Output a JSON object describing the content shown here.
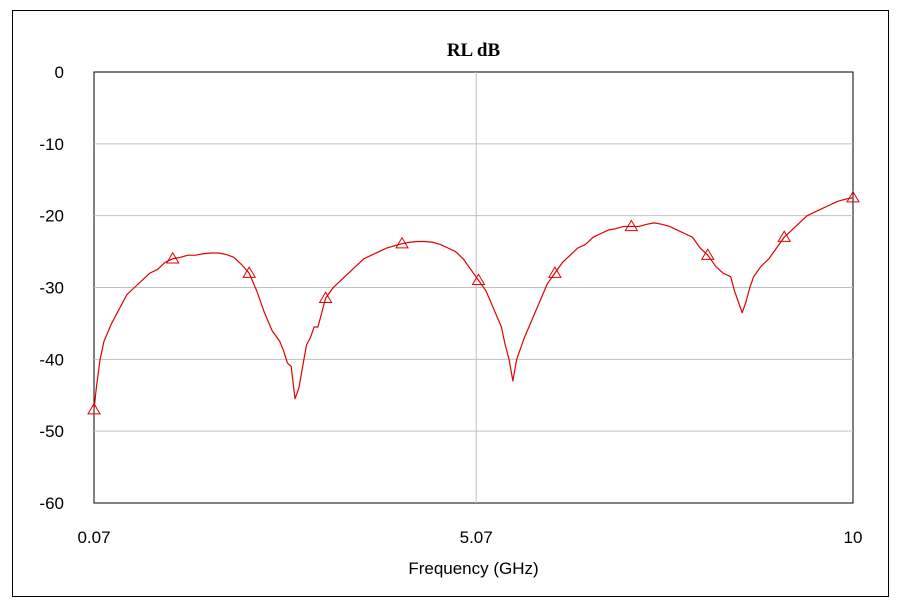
{
  "chart_data": {
    "type": "line",
    "title": "RL dB",
    "xlabel": "Frequency (GHz)",
    "ylabel": "",
    "xlim": [
      0.07,
      10
    ],
    "ylim": [
      -60,
      0
    ],
    "x_ticks": [
      "0.07",
      "5.07",
      "10"
    ],
    "y_ticks": [
      "0",
      "-10",
      "-20",
      "-30",
      "-40",
      "-50",
      "-60"
    ],
    "grid": "horizontal at every y tick; vertical at 5.07",
    "series": [
      {
        "color": "#e00000",
        "marker": "open-triangle",
        "points": [
          [
            0.07,
            -47.0
          ],
          [
            0.1,
            -44.0
          ],
          [
            0.15,
            -40.0
          ],
          [
            0.2,
            -37.5
          ],
          [
            0.3,
            -35.0
          ],
          [
            0.4,
            -33.0
          ],
          [
            0.5,
            -31.0
          ],
          [
            0.6,
            -30.0
          ],
          [
            0.7,
            -29.0
          ],
          [
            0.8,
            -28.0
          ],
          [
            0.9,
            -27.5
          ],
          [
            1.0,
            -26.5
          ],
          [
            1.1,
            -26.0
          ],
          [
            1.2,
            -25.8
          ],
          [
            1.3,
            -25.5
          ],
          [
            1.4,
            -25.5
          ],
          [
            1.5,
            -25.3
          ],
          [
            1.6,
            -25.2
          ],
          [
            1.7,
            -25.2
          ],
          [
            1.8,
            -25.4
          ],
          [
            1.9,
            -25.8
          ],
          [
            2.0,
            -26.8
          ],
          [
            2.1,
            -28.0
          ],
          [
            2.2,
            -30.5
          ],
          [
            2.3,
            -33.5
          ],
          [
            2.4,
            -36.0
          ],
          [
            2.5,
            -37.5
          ],
          [
            2.55,
            -38.8
          ],
          [
            2.6,
            -40.5
          ],
          [
            2.65,
            -41.0
          ],
          [
            2.7,
            -45.5
          ],
          [
            2.75,
            -44.0
          ],
          [
            2.8,
            -41.0
          ],
          [
            2.85,
            -38.0
          ],
          [
            2.9,
            -37.0
          ],
          [
            2.95,
            -35.5
          ],
          [
            3.0,
            -35.5
          ],
          [
            3.05,
            -33.5
          ],
          [
            3.1,
            -31.5
          ],
          [
            3.2,
            -30.0
          ],
          [
            3.3,
            -29.0
          ],
          [
            3.4,
            -28.0
          ],
          [
            3.5,
            -27.0
          ],
          [
            3.6,
            -26.0
          ],
          [
            3.7,
            -25.5
          ],
          [
            3.8,
            -25.0
          ],
          [
            3.9,
            -24.5
          ],
          [
            4.0,
            -24.2
          ],
          [
            4.1,
            -23.9
          ],
          [
            4.2,
            -23.7
          ],
          [
            4.3,
            -23.6
          ],
          [
            4.4,
            -23.6
          ],
          [
            4.5,
            -23.7
          ],
          [
            4.6,
            -24.0
          ],
          [
            4.7,
            -24.5
          ],
          [
            4.8,
            -25.0
          ],
          [
            4.9,
            -26.0
          ],
          [
            5.0,
            -27.5
          ],
          [
            5.1,
            -29.0
          ],
          [
            5.2,
            -30.5
          ],
          [
            5.3,
            -33.0
          ],
          [
            5.4,
            -35.5
          ],
          [
            5.45,
            -38.0
          ],
          [
            5.5,
            -40.0
          ],
          [
            5.55,
            -43.0
          ],
          [
            5.6,
            -40.0
          ],
          [
            5.7,
            -37.0
          ],
          [
            5.8,
            -34.5
          ],
          [
            5.9,
            -32.0
          ],
          [
            6.0,
            -29.5
          ],
          [
            6.1,
            -28.0
          ],
          [
            6.2,
            -26.5
          ],
          [
            6.3,
            -25.5
          ],
          [
            6.4,
            -24.5
          ],
          [
            6.5,
            -24.0
          ],
          [
            6.6,
            -23.0
          ],
          [
            6.7,
            -22.5
          ],
          [
            6.8,
            -22.0
          ],
          [
            6.9,
            -21.8
          ],
          [
            7.0,
            -21.5
          ],
          [
            7.1,
            -21.5
          ],
          [
            7.2,
            -21.5
          ],
          [
            7.3,
            -21.2
          ],
          [
            7.4,
            -21.0
          ],
          [
            7.5,
            -21.2
          ],
          [
            7.6,
            -21.5
          ],
          [
            7.7,
            -22.0
          ],
          [
            7.8,
            -22.5
          ],
          [
            7.9,
            -23.0
          ],
          [
            8.0,
            -24.5
          ],
          [
            8.1,
            -25.5
          ],
          [
            8.2,
            -27.0
          ],
          [
            8.3,
            -28.0
          ],
          [
            8.4,
            -28.5
          ],
          [
            8.45,
            -30.5
          ],
          [
            8.5,
            -32.0
          ],
          [
            8.55,
            -33.5
          ],
          [
            8.6,
            -32.0
          ],
          [
            8.65,
            -30.0
          ],
          [
            8.7,
            -28.5
          ],
          [
            8.8,
            -27.0
          ],
          [
            8.9,
            -26.0
          ],
          [
            9.0,
            -24.5
          ],
          [
            9.1,
            -23.0
          ],
          [
            9.2,
            -22.0
          ],
          [
            9.3,
            -21.0
          ],
          [
            9.4,
            -20.0
          ],
          [
            9.5,
            -19.5
          ],
          [
            9.6,
            -19.0
          ],
          [
            9.7,
            -18.5
          ],
          [
            9.8,
            -18.0
          ],
          [
            9.9,
            -17.7
          ],
          [
            10.0,
            -17.5
          ]
        ]
      }
    ]
  }
}
